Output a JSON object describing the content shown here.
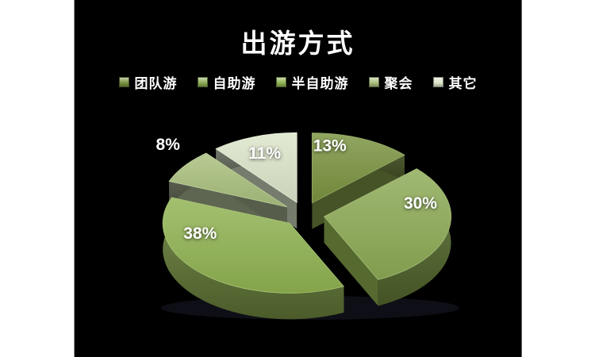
{
  "slide": {
    "background": "#000000",
    "page_background": "#ffffff"
  },
  "chart_data": {
    "type": "pie",
    "title": "出游方式",
    "effect": "3d-exploded",
    "legend_position": "top",
    "background": "#000000",
    "text_color": "#ffffff",
    "slices": [
      {
        "label": "团队游",
        "value": 13,
        "display": "13%",
        "color": "#79923e",
        "side_color": "#4c5a2a"
      },
      {
        "label": "自助游",
        "value": 30,
        "display": "30%",
        "color": "#8caa54",
        "side_color": "#5d7334"
      },
      {
        "label": "半自助游",
        "value": 38,
        "display": "38%",
        "color": "#8fb250",
        "side_color": "#68803a"
      },
      {
        "label": "聚会",
        "value": 8,
        "display": "8%",
        "color": "#a9bf7d",
        "side_color": "#5e6550"
      },
      {
        "label": "其它",
        "value": 11,
        "display": "11%",
        "color": "#dce5c9",
        "side_color": "#757c6d"
      }
    ]
  }
}
